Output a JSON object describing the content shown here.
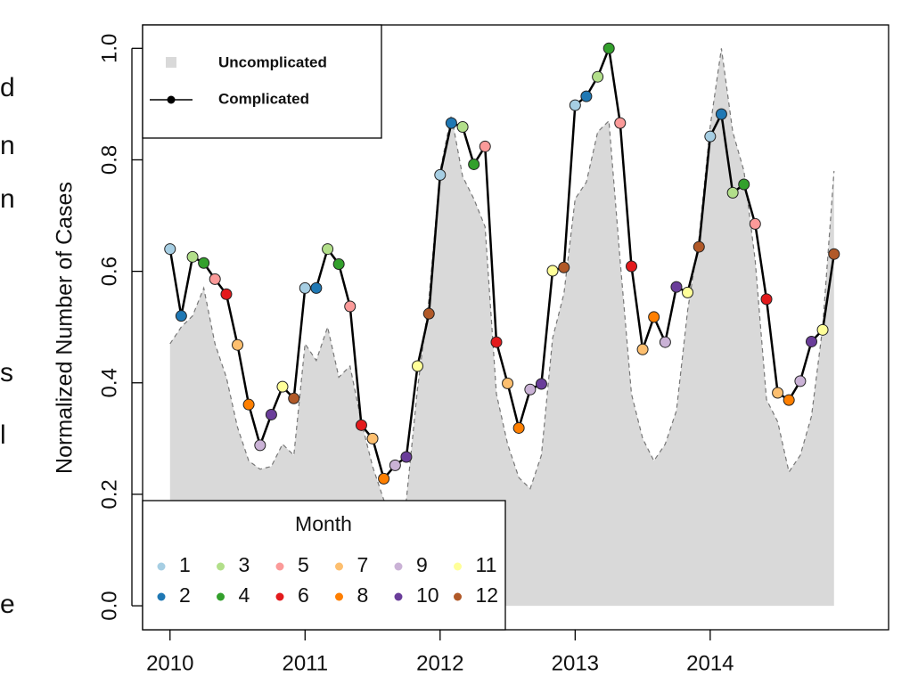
{
  "chart_data": {
    "type": "line",
    "ylabel": "Normalized Number of Cases",
    "x": [
      2010,
      2010.083,
      2010.167,
      2010.25,
      2010.333,
      2010.417,
      2010.5,
      2010.583,
      2010.667,
      2010.75,
      2010.833,
      2010.917,
      2011,
      2011.083,
      2011.167,
      2011.25,
      2011.333,
      2011.417,
      2011.5,
      2011.583,
      2011.667,
      2011.75,
      2011.833,
      2011.917,
      2012,
      2012.083,
      2012.167,
      2012.25,
      2012.333,
      2012.417,
      2012.5,
      2012.583,
      2012.667,
      2012.75,
      2012.833,
      2012.917,
      2013,
      2013.083,
      2013.167,
      2013.25,
      2013.333,
      2013.417,
      2013.5,
      2013.583,
      2013.667,
      2013.75,
      2013.833,
      2013.917,
      2014,
      2014.083,
      2014.167,
      2014.25,
      2014.333,
      2014.417,
      2014.5,
      2014.583,
      2014.667,
      2014.75,
      2014.833,
      2014.917
    ],
    "series": [
      {
        "name": "Uncomplicated",
        "color": "#d9d9d9",
        "values": [
          0.47,
          0.5,
          0.52,
          0.57,
          0.47,
          0.41,
          0.32,
          0.26,
          0.245,
          0.25,
          0.29,
          0.27,
          0.47,
          0.44,
          0.5,
          0.41,
          0.43,
          0.33,
          0.25,
          0.19,
          0.16,
          0.19,
          0.39,
          0.55,
          0.78,
          0.88,
          0.77,
          0.73,
          0.68,
          0.38,
          0.29,
          0.23,
          0.21,
          0.27,
          0.48,
          0.56,
          0.73,
          0.76,
          0.85,
          0.87,
          0.62,
          0.38,
          0.3,
          0.26,
          0.29,
          0.35,
          0.53,
          0.66,
          0.86,
          1.0,
          0.85,
          0.78,
          0.62,
          0.37,
          0.33,
          0.24,
          0.27,
          0.34,
          0.5,
          0.78
        ]
      },
      {
        "name": "Complicated",
        "color": "#000000",
        "values": [
          0.64,
          0.52,
          0.626,
          0.615,
          0.586,
          0.559,
          0.468,
          0.361,
          0.288,
          0.343,
          0.393,
          0.372,
          0.57,
          0.57,
          0.64,
          0.613,
          0.537,
          0.324,
          0.3,
          0.228,
          0.252,
          0.267,
          0.43,
          0.524,
          0.773,
          0.866,
          0.859,
          0.792,
          0.824,
          0.473,
          0.399,
          0.319,
          0.388,
          0.398,
          0.601,
          0.607,
          0.898,
          0.914,
          0.949,
          1.0,
          0.866,
          0.609,
          0.46,
          0.518,
          0.473,
          0.572,
          0.562,
          0.644,
          0.842,
          0.882,
          0.741,
          0.756,
          0.685,
          0.55,
          0.382,
          0.369,
          0.403,
          0.474,
          0.495,
          0.631
        ]
      }
    ],
    "month_legend": {
      "title": "Month",
      "labels": [
        1,
        2,
        3,
        4,
        5,
        6,
        7,
        8,
        9,
        10,
        11,
        12
      ],
      "colors": [
        "#a6cee3",
        "#1f78b4",
        "#b2df8a",
        "#33a02c",
        "#fb9a99",
        "#e31a1c",
        "#fdbf6f",
        "#ff7f00",
        "#cab2d6",
        "#6a3d9a",
        "#ffff99",
        "#b15928"
      ]
    },
    "xlim": [
      2009.797,
      2015.321
    ],
    "xticks": [
      2010,
      2011,
      2012,
      2013,
      2014
    ],
    "ylim": [
      -0.043,
      1.042
    ],
    "yticks": [
      {
        "value": 0,
        "label": "0.0"
      },
      {
        "value": 0.2,
        "label": "0.2"
      },
      {
        "value": 0.4,
        "label": "0.4"
      },
      {
        "value": 0.6,
        "label": "0.6"
      },
      {
        "value": 0.8,
        "label": "0.8"
      },
      {
        "value": 1,
        "label": "1.0"
      }
    ],
    "legend": "top-left",
    "side_text": [
      "d",
      "n",
      "n",
      "s",
      "l",
      "e"
    ]
  }
}
